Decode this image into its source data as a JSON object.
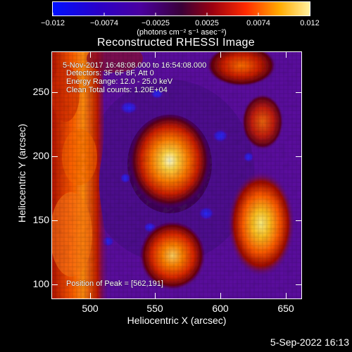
{
  "colorbar": {
    "tick_labels": [
      "−0.012",
      "−0.0074",
      "−0.0025",
      "0.0025",
      "0.0074",
      "0.012"
    ],
    "unit_label": "(photons cm⁻² s⁻¹ asec⁻²)",
    "range": [
      -0.012,
      0.012
    ]
  },
  "title": "Reconstructed RHESSI Image",
  "overlay": {
    "line1": "5-Nov-2017 16:48:08.000 to 16:54:08.000",
    "line2": "Detectors: 3F 6F 8F, Att 0",
    "line3": "Energy Range: 12.0 - 25.0 keV",
    "line4": "Clean     Total counts: 1.20E+04",
    "peak": "Position of Peak = [562,191]"
  },
  "x_axis": {
    "label": "Heliocentric X (arcsec)",
    "ticks": [
      "500",
      "550",
      "600",
      "650"
    ],
    "range": [
      471,
      661
    ]
  },
  "y_axis": {
    "label": "Heliocentric Y (arcsec)",
    "ticks": [
      "100",
      "150",
      "200",
      "250"
    ],
    "range": [
      89,
      282
    ]
  },
  "footer": {
    "timestamp": "5-Sep-2022 16:13"
  },
  "colors": {
    "background": "#000000",
    "axis": "#ffffff"
  }
}
